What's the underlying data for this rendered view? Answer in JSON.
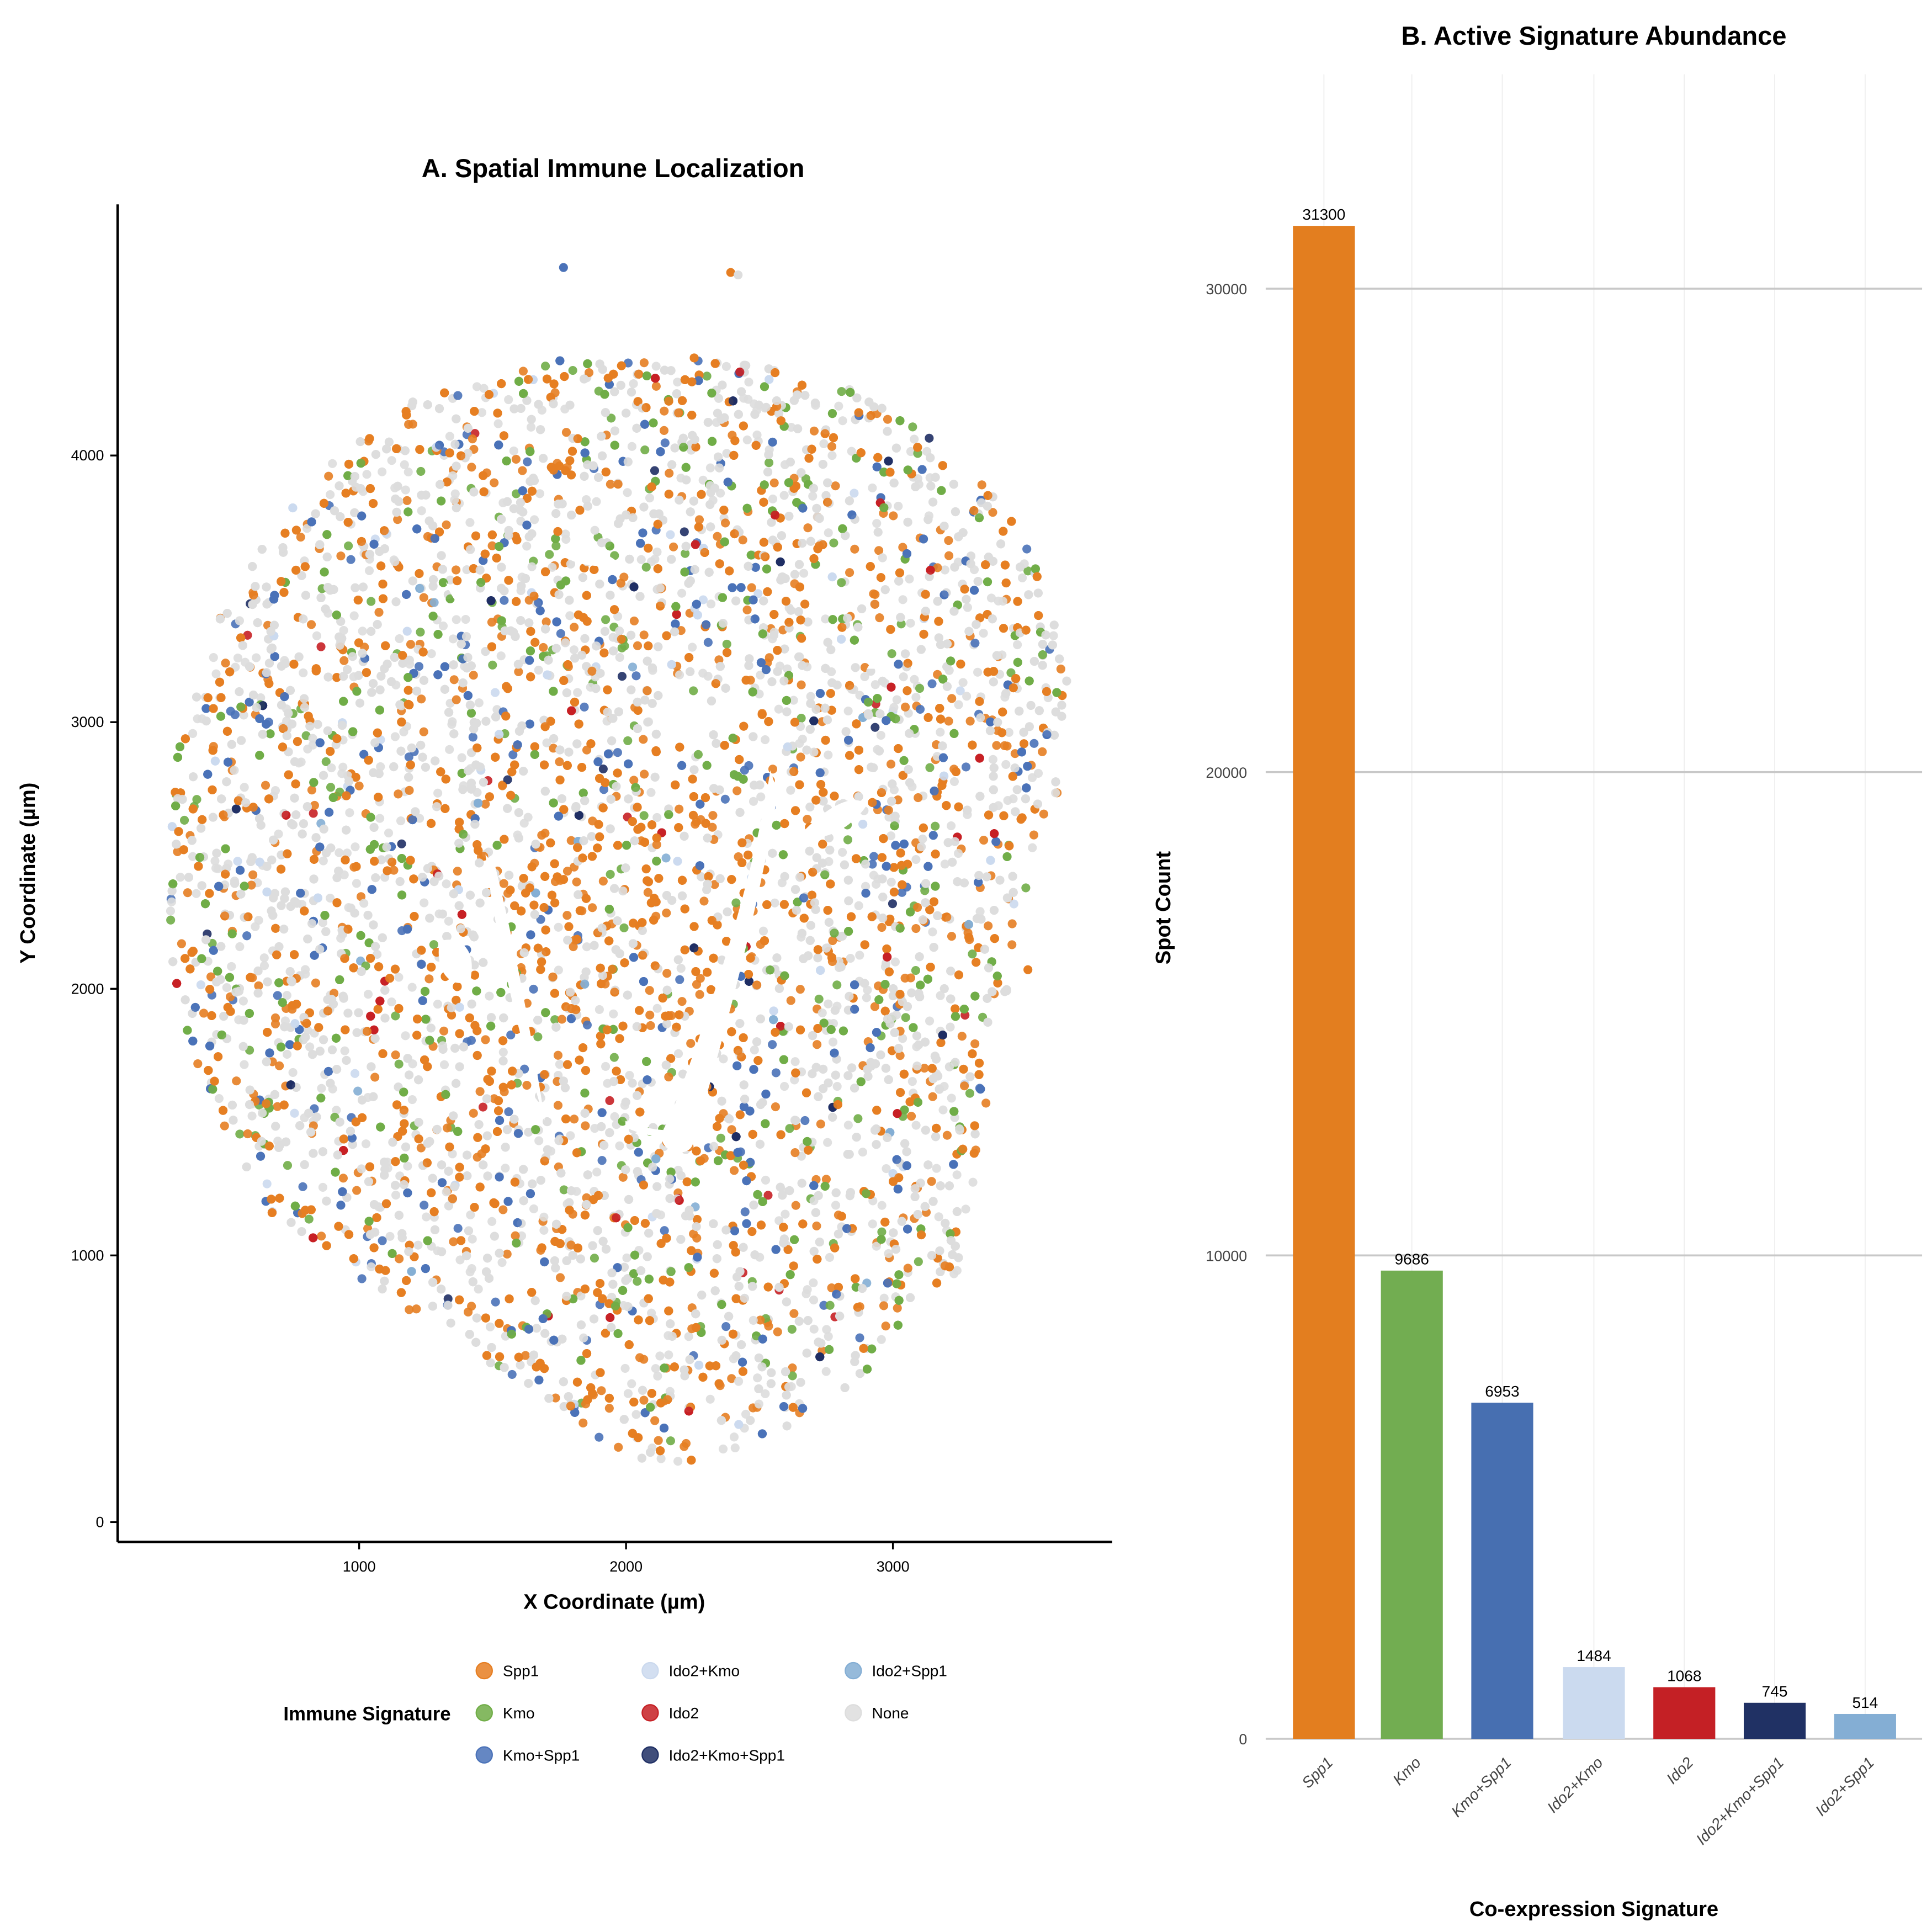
{
  "chart_data": [
    {
      "type": "scatter",
      "title": "A. Spatial Immune Localization",
      "xlabel": "X Coordinate (µm)",
      "ylabel": "Y Coordinate (µm)",
      "xlim": [
        100,
        3820
      ],
      "ylim": [
        -75,
        4860
      ],
      "xticks": [
        1000,
        2000,
        3000
      ],
      "yticks": [
        0,
        1000,
        2000,
        3000,
        4000
      ],
      "grid": false,
      "legend": {
        "title": "Immune Signature",
        "placement": "bottom",
        "entries": [
          {
            "label": "Spp1",
            "color": "#E67E22"
          },
          {
            "label": "Kmo",
            "color": "#70AD47"
          },
          {
            "label": "Kmo+Spp1",
            "color": "#4A72B8"
          },
          {
            "label": "Ido2+Kmo",
            "color": "#CBD9EE"
          },
          {
            "label": "Ido2",
            "color": "#C62025"
          },
          {
            "label": "Ido2+Kmo+Spp1",
            "color": "#1F2F64"
          },
          {
            "label": "Ido2+Spp1",
            "color": "#84AED4"
          },
          {
            "label": "None",
            "color": "#DDDDDD"
          }
        ]
      }
    },
    {
      "type": "bar",
      "title": "B. Active Signature Abundance",
      "xlabel": "Co-expression Signature",
      "ylabel": "Spot Count",
      "ylim": [
        0,
        34500
      ],
      "yticks": [
        0,
        10000,
        20000,
        30000
      ],
      "grid": true,
      "categories": [
        "Spp1",
        "Kmo",
        "Kmo+Spp1",
        "Ido2+Kmo",
        "Ido2",
        "Ido2+Kmo+Spp1",
        "Ido2+Spp1"
      ],
      "values": [
        31300,
        9686,
        6953,
        1484,
        1068,
        745,
        514
      ],
      "data_labels": [
        "31300",
        "9686",
        "6953",
        "1484",
        "1068",
        "745",
        "514"
      ],
      "colors": [
        "#E37E1F",
        "#72AD51",
        "#476FB1",
        "#CBDAEF",
        "#C42025",
        "#203164",
        "#84AED4"
      ]
    }
  ]
}
